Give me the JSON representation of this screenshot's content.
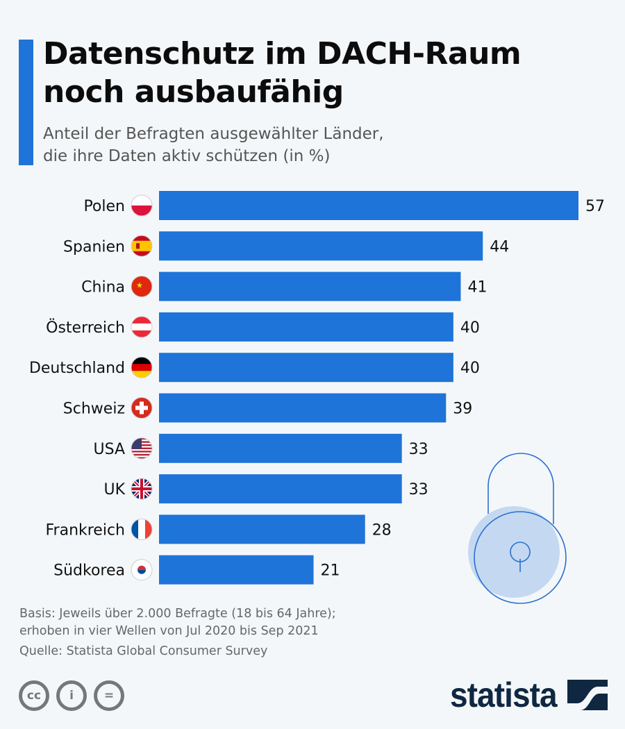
{
  "header": {
    "title_line1": "Datenschutz im DACH-Raum",
    "title_line2": "noch ausbaufähig",
    "subtitle_line1": "Anteil der Befragten ausgewählter Länder,",
    "subtitle_line2": "die ihre Daten aktiv schützen (in %)"
  },
  "chart_data": {
    "type": "bar",
    "orientation": "horizontal",
    "categories": [
      "Polen",
      "Spanien",
      "China",
      "Österreich",
      "Deutschland",
      "Schweiz",
      "USA",
      "UK",
      "Frankreich",
      "Südkorea"
    ],
    "values": [
      57,
      44,
      41,
      40,
      40,
      39,
      33,
      33,
      28,
      21
    ],
    "flags": [
      "poland-flag",
      "spain-flag",
      "china-flag",
      "austria-flag",
      "germany-flag",
      "switzerland-flag",
      "usa-flag",
      "uk-flag",
      "france-flag",
      "south-korea-flag"
    ],
    "bar_color": "#1e74d8",
    "grid": false,
    "xlim": [
      0,
      57
    ]
  },
  "footer": {
    "basis_line1": "Basis: Jeweils über 2.000 Befragte (18 bis 64 Jahre);",
    "basis_line2": "erhoben in vier Wellen von Jul 2020 bis Sep 2021",
    "source": "Quelle: Statista Global Consumer Survey",
    "logo": "statista",
    "cc_labels": [
      "cc",
      "i",
      "="
    ]
  }
}
